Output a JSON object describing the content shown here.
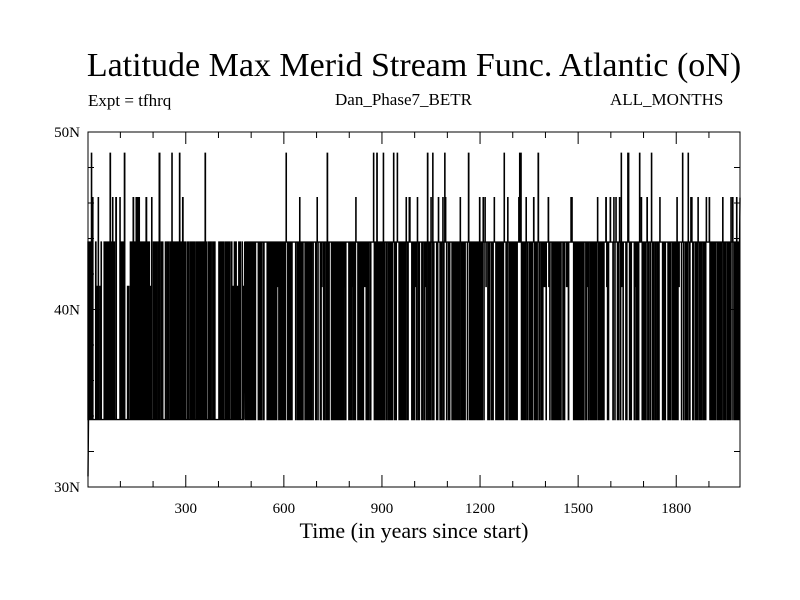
{
  "chart_data": {
    "type": "line",
    "title": "Latitude Max Merid Stream Func. Atlantic (oN)",
    "expt_label": "Expt = tfhrq",
    "subtitle": "Dan_Phase7_BETR",
    "season": "ALL_MONTHS",
    "xlabel": "Time (in years since start)",
    "ylabel": "",
    "xlim": [
      1,
      1995
    ],
    "ylim": [
      30,
      50
    ],
    "x_ticks": [
      300,
      600,
      900,
      1200,
      1500,
      1800
    ],
    "x_tick_labels": [
      "300",
      "600",
      "900",
      "1200",
      "1500",
      "1800"
    ],
    "y_ticks": [
      30,
      40,
      50
    ],
    "y_tick_labels": [
      "30N",
      "40N",
      "50N"
    ],
    "levels": [
      33.8,
      41.3,
      43.8,
      46.3,
      48.8
    ],
    "segments": [
      {
        "x_start": 1,
        "x_end": 200,
        "base": 33.8,
        "spikes": 45,
        "mix": [
          0.2,
          0.1,
          0.35,
          0.2,
          0.15
        ]
      },
      {
        "x_start": 200,
        "x_end": 480,
        "base": 33.8,
        "spikes": 60,
        "mix": [
          0.05,
          0.05,
          0.85,
          0.02,
          0.03
        ]
      },
      {
        "x_start": 480,
        "x_end": 820,
        "base": 43.8,
        "spikes": 140,
        "mix": [
          0.6,
          0.08,
          0.27,
          0.02,
          0.03
        ]
      },
      {
        "x_start": 820,
        "x_end": 1995,
        "base": 43.8,
        "spikes": 420,
        "mix": [
          0.62,
          0.04,
          0.18,
          0.1,
          0.06
        ]
      }
    ]
  }
}
